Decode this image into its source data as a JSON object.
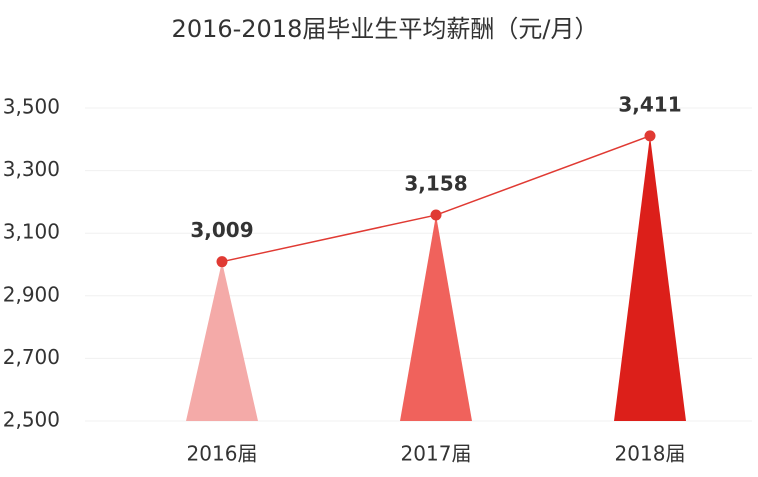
{
  "chart_data": {
    "type": "bar",
    "title": "2016-2018届毕业生平均薪酬（元/月）",
    "categories": [
      "2016届",
      "2017届",
      "2018届"
    ],
    "values": [
      3009,
      3158,
      3411
    ],
    "value_labels": [
      "3,009",
      "3,158",
      "3,411"
    ],
    "colors": [
      "#f4aaa8",
      "#f0625c",
      "#dc1f1a"
    ],
    "line_color": "#e03a33",
    "ylim": [
      2500,
      3500
    ],
    "yticks": [
      {
        "value": 2500,
        "label": "2,500"
      },
      {
        "value": 2700,
        "label": "2,700"
      },
      {
        "value": 2900,
        "label": "2,900"
      },
      {
        "value": 3100,
        "label": "3,100"
      },
      {
        "value": 3300,
        "label": "3,300"
      },
      {
        "value": 3500,
        "label": "3,500"
      }
    ],
    "grid": true
  }
}
